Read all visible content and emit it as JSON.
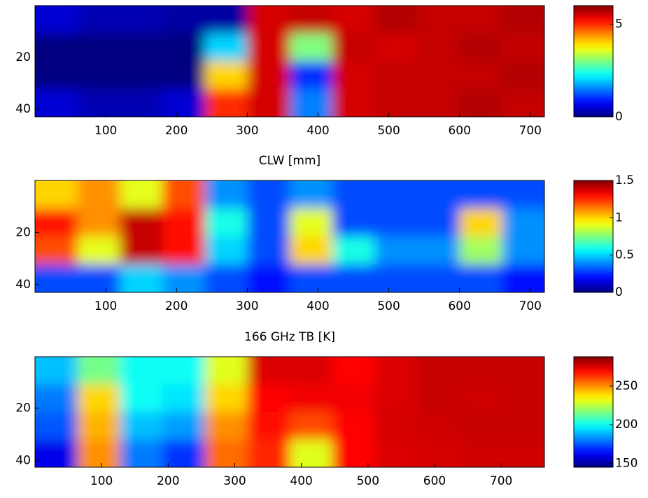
{
  "chart_data": [
    {
      "type": "heatmap",
      "xlim": [
        0,
        720
      ],
      "xticks": [
        100,
        200,
        300,
        400,
        500,
        600,
        700
      ],
      "ylim": [
        0,
        43
      ],
      "yticks": [
        20,
        40
      ],
      "clim": [
        0,
        6
      ],
      "cticks": [
        0,
        5
      ],
      "z": [
        [
          0.5,
          0.3,
          0.3,
          0.2,
          0.2,
          5.5,
          5.6,
          5.5,
          5.7,
          5.6,
          5.6,
          5.7
        ],
        [
          0,
          0,
          0,
          0,
          2,
          5.5,
          3,
          5.6,
          5.5,
          5.6,
          5.7,
          5.6
        ],
        [
          0,
          0,
          0,
          0,
          4,
          5.5,
          1,
          5.5,
          5.6,
          5.6,
          5.6,
          5.7
        ],
        [
          0.5,
          0.3,
          0.3,
          0.5,
          5,
          5.5,
          1.5,
          5.5,
          5.6,
          5.6,
          5.7,
          5.6
        ]
      ]
    },
    {
      "type": "heatmap",
      "title": "CLW [mm]",
      "xlim": [
        0,
        720
      ],
      "xticks": [
        100,
        200,
        300,
        400,
        500,
        600,
        700
      ],
      "ylim": [
        0,
        43
      ],
      "yticks": [
        20,
        40
      ],
      "clim": [
        0,
        1.5
      ],
      "cticks": [
        0,
        0.5,
        1,
        1.5
      ],
      "z": [
        [
          1.0,
          1.1,
          0.9,
          1.2,
          0.4,
          0.3,
          0.4,
          0.3,
          0.3,
          0.3,
          0.3,
          0.3
        ],
        [
          1.3,
          1.1,
          1.4,
          1.3,
          0.6,
          0.3,
          0.9,
          0.3,
          0.3,
          0.3,
          1.0,
          0.4
        ],
        [
          1.2,
          0.9,
          1.4,
          1.3,
          0.5,
          0.3,
          1.0,
          0.6,
          0.4,
          0.4,
          0.8,
          0.4
        ],
        [
          0.3,
          0.3,
          0.5,
          0.4,
          0.3,
          0.2,
          0.3,
          0.3,
          0.3,
          0.3,
          0.3,
          0.2
        ]
      ]
    },
    {
      "type": "heatmap",
      "title": "166 GHz TB [K]",
      "xlim": [
        0,
        765
      ],
      "xticks": [
        100,
        200,
        300,
        400,
        500,
        600,
        700
      ],
      "ylim": [
        0.5,
        42.5
      ],
      "yticks": [
        20,
        40
      ],
      "clim": [
        145,
        288
      ],
      "cticks": [
        150,
        200,
        250
      ],
      "z": [
        [
          190,
          215,
          200,
          200,
          230,
          275,
          275,
          270,
          275,
          278,
          278,
          278
        ],
        [
          180,
          240,
          200,
          195,
          240,
          270,
          272,
          272,
          275,
          278,
          277,
          278
        ],
        [
          175,
          245,
          190,
          185,
          250,
          268,
          260,
          270,
          276,
          277,
          278,
          278
        ],
        [
          160,
          250,
          180,
          170,
          255,
          265,
          230,
          270,
          275,
          276,
          277,
          277
        ]
      ]
    }
  ]
}
